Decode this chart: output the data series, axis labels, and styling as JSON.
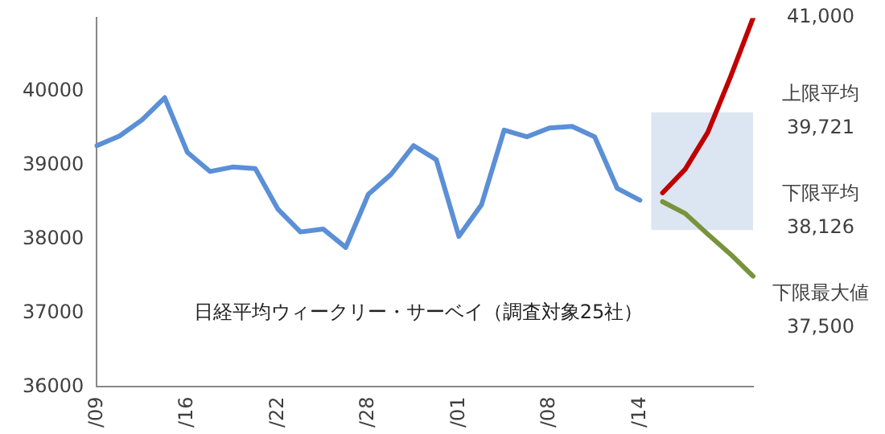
{
  "chart_data": {
    "type": "line",
    "categories": [
      "/09",
      null,
      null,
      null,
      "/16",
      null,
      null,
      null,
      "/22",
      null,
      null,
      null,
      "/28",
      null,
      null,
      null,
      "/01",
      null,
      null,
      null,
      "/08",
      null,
      null,
      null,
      "/14",
      null,
      null,
      null,
      null,
      null
    ],
    "series": [
      {
        "color": "#5b8fd6",
        "values": [
          39270,
          39400,
          39620,
          39920,
          39180,
          38920,
          38980,
          38960,
          38410,
          38100,
          38140,
          37890,
          38610,
          38880,
          39270,
          39080,
          38040,
          38470,
          39480,
          39390,
          39510,
          39530,
          39390,
          38690,
          38530,
          null,
          null,
          null,
          null,
          null
        ]
      },
      {
        "color": "#c00000",
        "values": [
          null,
          null,
          null,
          null,
          null,
          null,
          null,
          null,
          null,
          null,
          null,
          null,
          null,
          null,
          null,
          null,
          null,
          null,
          null,
          null,
          null,
          null,
          null,
          null,
          null,
          38630,
          38950,
          39450,
          40200,
          41000
        ]
      },
      {
        "color": "#77933c",
        "values": [
          null,
          null,
          null,
          null,
          null,
          null,
          null,
          null,
          null,
          null,
          null,
          null,
          null,
          null,
          null,
          null,
          null,
          null,
          null,
          null,
          null,
          null,
          null,
          null,
          null,
          38510,
          38350,
          38070,
          37800,
          37500
        ]
      }
    ],
    "ylim": [
      36000,
      41000
    ],
    "yticks": [
      36000,
      37000,
      38000,
      39000,
      40000
    ],
    "bands": [
      {
        "axis": "y",
        "from": 38126,
        "to": 39721,
        "color": "#dce6f2"
      }
    ],
    "grid": false,
    "annotations": [
      "日経平均ウィークリー・サーベイ（調査対象25社）",
      "41,000",
      "上限平均\n39,721",
      "下限平均\n38,126",
      "下限最大値\n37,500"
    ]
  }
}
